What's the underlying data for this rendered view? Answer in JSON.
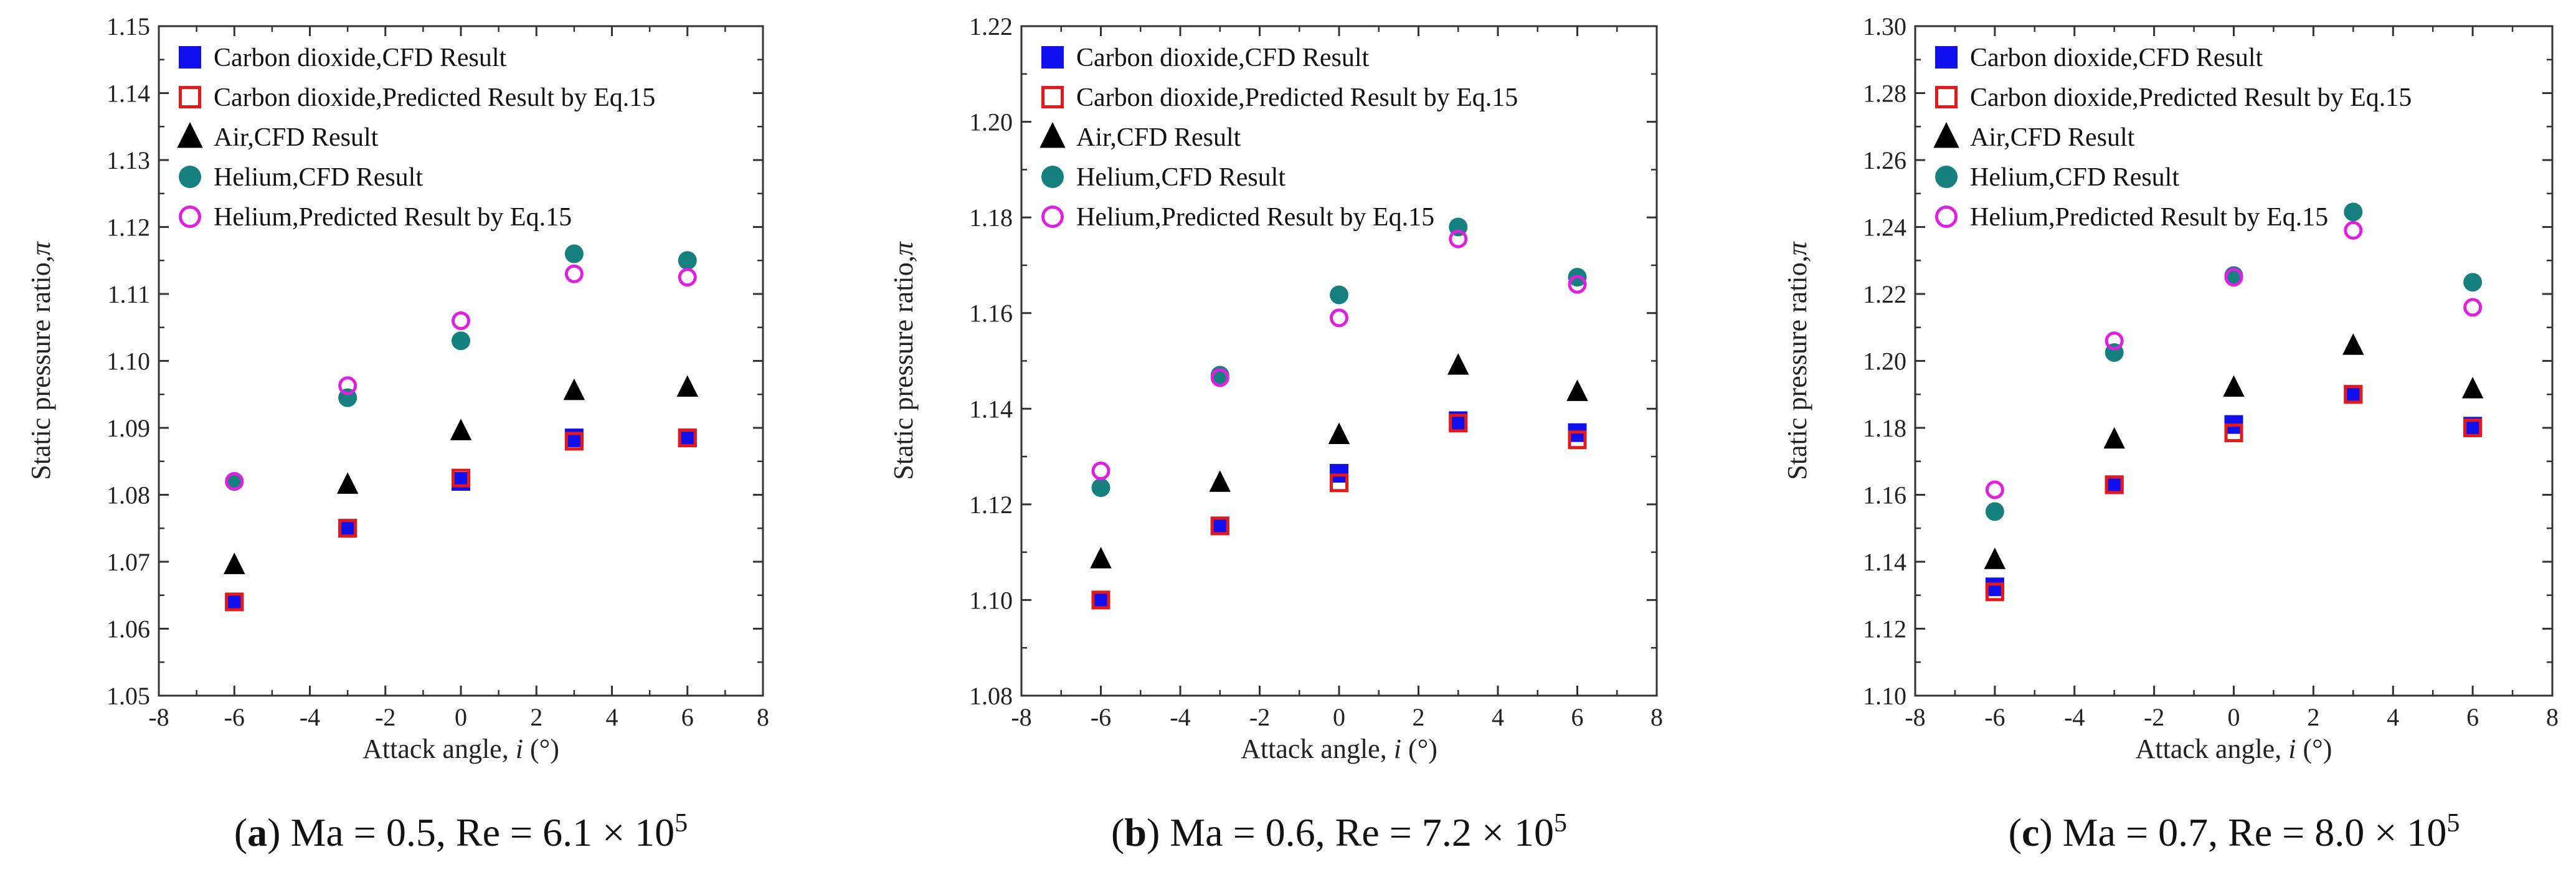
{
  "chart_data": [
    {
      "type": "scatter",
      "panel": "a",
      "caption": {
        "letter": "a",
        "text": " Ma = 0.5, Re = 6.1 × 10",
        "exp": "5"
      },
      "xlabel": "Attack angle, ",
      "xlabel_var": "i",
      "xlabel_unit": " (°)",
      "ylabel": "Static pressure ratio,",
      "ylabel_var": "π",
      "xlim": [
        -8,
        8
      ],
      "ylim": [
        1.05,
        1.15
      ],
      "xticks": [
        -8,
        -6,
        -4,
        -2,
        0,
        2,
        4,
        6,
        8
      ],
      "yticks": [
        1.05,
        1.06,
        1.07,
        1.08,
        1.09,
        1.1,
        1.11,
        1.12,
        1.13,
        1.14,
        1.15
      ],
      "ytick_labels": [
        "1.05",
        "1.06",
        "1.07",
        "1.08",
        "1.09",
        "1.10",
        "1.11",
        "1.12",
        "1.13",
        "1.14",
        "1.15"
      ],
      "x": [
        -6,
        -3,
        0,
        3,
        6
      ],
      "series": [
        {
          "name": "Carbon dioxide,CFD Result",
          "marker": "square-filled",
          "color": "#1010ee",
          "values": [
            1.064,
            1.075,
            1.082,
            1.0885,
            1.0885
          ]
        },
        {
          "name": "Carbon dioxide,Predicted Result by Eq.15",
          "marker": "square-open",
          "color": "#e41a1a",
          "values": [
            1.064,
            1.075,
            1.0825,
            1.088,
            1.0885
          ]
        },
        {
          "name": "Air,CFD Result",
          "marker": "triangle-filled",
          "color": "#000000",
          "values": [
            1.0695,
            1.0815,
            1.0895,
            1.0955,
            1.096
          ]
        },
        {
          "name": "Helium,CFD Result",
          "marker": "circle-filled",
          "color": "#16807f",
          "values": [
            1.082,
            1.0945,
            1.103,
            1.116,
            1.115
          ]
        },
        {
          "name": "Helium,Predicted Result by Eq.15",
          "marker": "circle-open",
          "color": "#e020e0",
          "values": [
            1.082,
            1.0963,
            1.106,
            1.113,
            1.1125
          ]
        }
      ]
    },
    {
      "type": "scatter",
      "panel": "b",
      "caption": {
        "letter": "b",
        "text": " Ma = 0.6, Re = 7.2 × 10",
        "exp": "5"
      },
      "xlabel": "Attack angle, ",
      "xlabel_var": "i",
      "xlabel_unit": " (°)",
      "ylabel": "Static pressure ratio,",
      "ylabel_var": "π",
      "xlim": [
        -8,
        8
      ],
      "ylim": [
        1.08,
        1.22
      ],
      "xticks": [
        -8,
        -6,
        -4,
        -2,
        0,
        2,
        4,
        6,
        8
      ],
      "yticks": [
        1.08,
        1.1,
        1.12,
        1.14,
        1.16,
        1.18,
        1.2,
        1.22
      ],
      "ytick_labels": [
        "1.08",
        "1.10",
        "1.12",
        "1.14",
        "1.16",
        "1.18",
        "1.20",
        "1.22"
      ],
      "x": [
        -6,
        -3,
        0,
        3,
        6
      ],
      "series": [
        {
          "name": "Carbon dioxide,CFD Result",
          "marker": "square-filled",
          "color": "#1010ee",
          "values": [
            1.1,
            1.1155,
            1.1265,
            1.1375,
            1.135
          ]
        },
        {
          "name": "Carbon dioxide,Predicted Result by Eq.15",
          "marker": "square-open",
          "color": "#e41a1a",
          "values": [
            1.1,
            1.1155,
            1.1245,
            1.137,
            1.1335
          ]
        },
        {
          "name": "Air,CFD Result",
          "marker": "triangle-filled",
          "color": "#000000",
          "values": [
            1.1085,
            1.1245,
            1.1345,
            1.149,
            1.1435
          ]
        },
        {
          "name": "Helium,CFD Result",
          "marker": "circle-filled",
          "color": "#16807f",
          "values": [
            1.1235,
            1.147,
            1.1638,
            1.178,
            1.1675
          ]
        },
        {
          "name": "Helium,Predicted Result by Eq.15",
          "marker": "circle-open",
          "color": "#e020e0",
          "values": [
            1.127,
            1.1465,
            1.159,
            1.1755,
            1.166
          ]
        }
      ]
    },
    {
      "type": "scatter",
      "panel": "c",
      "caption": {
        "letter": "c",
        "text": " Ma = 0.7, Re = 8.0 × 10",
        "exp": "5"
      },
      "xlabel": "Attack angle, ",
      "xlabel_var": "i",
      "xlabel_unit": " (°)",
      "ylabel": "Static pressure ratio,",
      "ylabel_var": "π",
      "xlim": [
        -8,
        8
      ],
      "ylim": [
        1.1,
        1.3
      ],
      "xticks": [
        -8,
        -6,
        -4,
        -2,
        0,
        2,
        4,
        6,
        8
      ],
      "yticks": [
        1.1,
        1.12,
        1.14,
        1.16,
        1.18,
        1.2,
        1.22,
        1.24,
        1.26,
        1.28,
        1.3
      ],
      "ytick_labels": [
        "1.10",
        "1.12",
        "1.14",
        "1.16",
        "1.18",
        "1.20",
        "1.22",
        "1.24",
        "1.26",
        "1.28",
        "1.30"
      ],
      "x": [
        -6,
        -3,
        0,
        3,
        6
      ],
      "series": [
        {
          "name": "Carbon dioxide,CFD Result",
          "marker": "square-filled",
          "color": "#1010ee",
          "values": [
            1.1325,
            1.163,
            1.181,
            1.19,
            1.1805
          ]
        },
        {
          "name": "Carbon dioxide,Predicted Result by Eq.15",
          "marker": "square-open",
          "color": "#e41a1a",
          "values": [
            1.131,
            1.163,
            1.1785,
            1.19,
            1.18
          ]
        },
        {
          "name": "Air,CFD Result",
          "marker": "triangle-filled",
          "color": "#000000",
          "values": [
            1.1405,
            1.1765,
            1.192,
            1.2045,
            1.1915
          ]
        },
        {
          "name": "Helium,CFD Result",
          "marker": "circle-filled",
          "color": "#16807f",
          "values": [
            1.155,
            1.2025,
            1.2255,
            1.2445,
            1.2235
          ]
        },
        {
          "name": "Helium,Predicted Result by Eq.15",
          "marker": "circle-open",
          "color": "#e020e0",
          "values": [
            1.1615,
            1.206,
            1.225,
            1.239,
            1.216
          ]
        }
      ]
    }
  ]
}
